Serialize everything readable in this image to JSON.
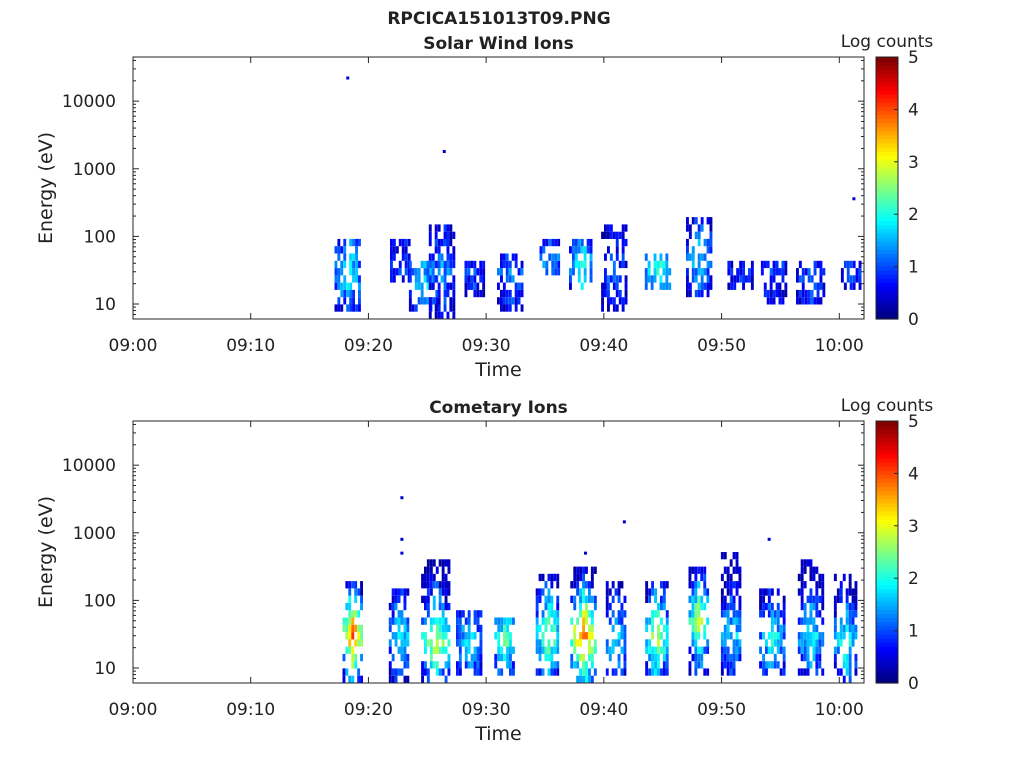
{
  "figure_title": "RPCICA151013T09.PNG",
  "chart_data": [
    {
      "type": "heatmap",
      "title": "Solar Wind Ions",
      "xlabel": "Time",
      "ylabel": "Energy (eV)",
      "x_ticks": [
        "09:00",
        "09:10",
        "09:20",
        "09:30",
        "09:40",
        "09:50",
        "10:00"
      ],
      "y_ticks": [
        "10",
        "100",
        "1000",
        "10000"
      ],
      "y_scale": "log",
      "ylim": [
        6,
        45000
      ],
      "xlim": [
        "09:00",
        "10:02"
      ],
      "colorbar": {
        "label": "Log counts",
        "ticks": [
          "0",
          "1",
          "2",
          "3",
          "4",
          "5"
        ],
        "range": [
          0,
          5
        ],
        "colormap": "jet"
      },
      "bursts": [
        {
          "t": 18.2,
          "e_lo": 7,
          "e_hi": 95,
          "peak": 2.0,
          "peak_e": 30
        },
        {
          "t": 22.7,
          "e_lo": 20,
          "e_hi": 90,
          "peak": 1.0,
          "peak_e": 40
        },
        {
          "t": 24.6,
          "e_lo": 7,
          "e_hi": 40,
          "peak": 1.8,
          "peak_e": 20
        },
        {
          "t": 26.2,
          "e_lo": 6,
          "e_hi": 140,
          "peak": 1.4,
          "peak_e": 35
        },
        {
          "t": 29.0,
          "e_lo": 12,
          "e_hi": 40,
          "peak": 1.0,
          "peak_e": 30
        },
        {
          "t": 32.0,
          "e_lo": 8,
          "e_hi": 50,
          "peak": 1.3,
          "peak_e": 30
        },
        {
          "t": 35.4,
          "e_lo": 25,
          "e_hi": 100,
          "peak": 1.5,
          "peak_e": 40
        },
        {
          "t": 38.0,
          "e_lo": 15,
          "e_hi": 90,
          "peak": 2.0,
          "peak_e": 35
        },
        {
          "t": 40.8,
          "e_lo": 7,
          "e_hi": 140,
          "peak": 1.2,
          "peak_e": 30
        },
        {
          "t": 44.5,
          "e_lo": 15,
          "e_hi": 60,
          "peak": 2.2,
          "peak_e": 30
        },
        {
          "t": 48.0,
          "e_lo": 12,
          "e_hi": 210,
          "peak": 1.7,
          "peak_e": 50
        },
        {
          "t": 51.5,
          "e_lo": 15,
          "e_hi": 40,
          "peak": 0.9,
          "peak_e": 30
        },
        {
          "t": 54.4,
          "e_lo": 10,
          "e_hi": 40,
          "peak": 1.0,
          "peak_e": 30
        },
        {
          "t": 57.5,
          "e_lo": 10,
          "e_hi": 40,
          "peak": 1.1,
          "peak_e": 25
        },
        {
          "t": 61.0,
          "e_lo": 15,
          "e_hi": 40,
          "peak": 1.1,
          "peak_e": 30
        }
      ],
      "specks": [
        [
          18.2,
          22000
        ],
        [
          26.4,
          1800
        ],
        [
          61.2,
          360
        ]
      ]
    },
    {
      "type": "heatmap",
      "title": "Cometary Ions",
      "xlabel": "Time",
      "ylabel": "Energy (eV)",
      "x_ticks": [
        "09:00",
        "09:10",
        "09:20",
        "09:30",
        "09:40",
        "09:50",
        "10:00"
      ],
      "y_ticks": [
        "10",
        "100",
        "1000",
        "10000"
      ],
      "y_scale": "log",
      "ylim": [
        6,
        45000
      ],
      "xlim": [
        "09:00",
        "10:02"
      ],
      "colorbar": {
        "label": "Log counts",
        "ticks": [
          "0",
          "1",
          "2",
          "3",
          "4",
          "5"
        ],
        "range": [
          0,
          5
        ],
        "colormap": "jet"
      },
      "bursts": [
        {
          "t": 18.6,
          "e_lo": 6,
          "e_hi": 180,
          "peak": 4.0,
          "peak_e": 30
        },
        {
          "t": 22.6,
          "e_lo": 6,
          "e_hi": 150,
          "peak": 2.0,
          "peak_e": 30
        },
        {
          "t": 25.6,
          "e_lo": 6,
          "e_hi": 400,
          "peak": 3.0,
          "peak_e": 25
        },
        {
          "t": 28.5,
          "e_lo": 7,
          "e_hi": 80,
          "peak": 1.8,
          "peak_e": 25
        },
        {
          "t": 31.5,
          "e_lo": 7,
          "e_hi": 60,
          "peak": 2.5,
          "peak_e": 25
        },
        {
          "t": 35.2,
          "e_lo": 8,
          "e_hi": 220,
          "peak": 2.7,
          "peak_e": 30
        },
        {
          "t": 38.2,
          "e_lo": 6,
          "e_hi": 280,
          "peak": 4.0,
          "peak_e": 30
        },
        {
          "t": 41.0,
          "e_lo": 7,
          "e_hi": 180,
          "peak": 1.8,
          "peak_e": 25
        },
        {
          "t": 44.4,
          "e_lo": 8,
          "e_hi": 200,
          "peak": 3.0,
          "peak_e": 30
        },
        {
          "t": 48.0,
          "e_lo": 8,
          "e_hi": 280,
          "peak": 3.0,
          "peak_e": 50
        },
        {
          "t": 50.8,
          "e_lo": 7,
          "e_hi": 500,
          "peak": 1.8,
          "peak_e": 30
        },
        {
          "t": 54.2,
          "e_lo": 7,
          "e_hi": 150,
          "peak": 2.0,
          "peak_e": 25
        },
        {
          "t": 57.5,
          "e_lo": 8,
          "e_hi": 400,
          "peak": 2.0,
          "peak_e": 30
        },
        {
          "t": 60.5,
          "e_lo": 6,
          "e_hi": 250,
          "peak": 2.2,
          "peak_e": 25
        }
      ],
      "specks": [
        [
          22.8,
          3300
        ],
        [
          22.8,
          800
        ],
        [
          22.8,
          500
        ],
        [
          41.7,
          1450
        ],
        [
          38.4,
          500
        ],
        [
          54.0,
          800
        ]
      ]
    }
  ]
}
